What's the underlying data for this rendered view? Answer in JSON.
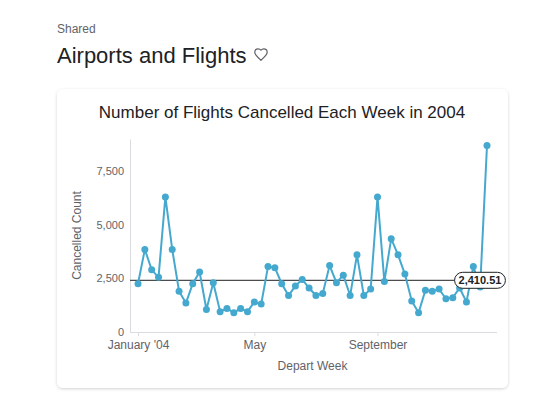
{
  "page": {
    "section": "Shared",
    "title": "Airports and Flights"
  },
  "chart_data": {
    "type": "line",
    "title": "Number of Flights Cancelled Each Week in 2004",
    "x_label": "Depart Week",
    "y_label": "Cancelled Count",
    "categories": [
      "January '04",
      null,
      null,
      null,
      null,
      null,
      null,
      null,
      null,
      null,
      null,
      null,
      null,
      null,
      null,
      null,
      null,
      "May",
      null,
      null,
      null,
      null,
      null,
      null,
      null,
      null,
      null,
      null,
      null,
      null,
      null,
      null,
      null,
      null,
      null,
      "September",
      null,
      null,
      null,
      null,
      null,
      null,
      null,
      null,
      null,
      null,
      null,
      null,
      null,
      null,
      null,
      null
    ],
    "values": [
      2250,
      3850,
      2900,
      2550,
      6300,
      3850,
      1900,
      1350,
      2250,
      2800,
      1050,
      2300,
      950,
      1100,
      900,
      1100,
      950,
      1400,
      1300,
      3050,
      3000,
      2250,
      1700,
      2150,
      2450,
      2050,
      1700,
      1800,
      3100,
      2300,
      2650,
      1700,
      3600,
      1700,
      2000,
      6300,
      2350,
      4350,
      3600,
      2700,
      1450,
      900,
      1950,
      1900,
      2000,
      1550,
      1600,
      2050,
      1400,
      3050,
      2100,
      8700
    ],
    "color": "#45a9cf",
    "marker": "circle",
    "ylim": [
      0,
      9000
    ],
    "yticks": [
      0,
      {
        "value": 2500,
        "label": "2,500"
      },
      {
        "value": 5000,
        "label": "5,000"
      },
      {
        "value": 7500,
        "label": "7,500"
      }
    ],
    "grid": false,
    "annotations": [
      {
        "value": 2410.51,
        "label": "2,410.51"
      }
    ]
  }
}
